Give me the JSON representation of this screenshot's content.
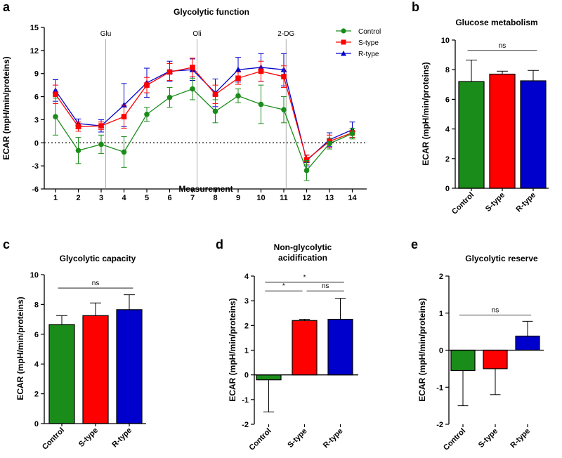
{
  "colors": {
    "control": "#1a8c1a",
    "s_type": "#ff0000",
    "r_type": "#0000cc",
    "axis": "#000000",
    "vline": "#999999"
  },
  "chart_data": [
    {
      "id": "a",
      "type": "line",
      "panel_label": "a",
      "title": "Glycolytic function",
      "xlabel": "Measurement",
      "ylabel": "ECAR (mpH/min/proteins)",
      "ylim": [
        -6,
        15
      ],
      "yticks": [
        -6,
        -3,
        0,
        3,
        6,
        9,
        12,
        15
      ],
      "x": [
        1,
        2,
        3,
        4,
        5,
        6,
        7,
        8,
        9,
        10,
        11,
        12,
        13,
        14
      ],
      "series": [
        {
          "name": "Control",
          "key": "control",
          "marker": "circle",
          "values": [
            3.4,
            -1.0,
            -0.2,
            -1.2,
            3.7,
            5.9,
            7.0,
            4.1,
            6.1,
            5.0,
            4.3,
            -3.6,
            -0.1,
            1.2
          ],
          "errors": [
            2.4,
            1.7,
            1.2,
            2.0,
            0.9,
            1.3,
            1.4,
            1.5,
            0.9,
            2.5,
            1.7,
            1.3,
            0.7,
            0.7
          ]
        },
        {
          "name": "S-type",
          "key": "s_type",
          "marker": "square",
          "values": [
            6.3,
            2.1,
            2.2,
            3.4,
            7.5,
            9.2,
            9.8,
            6.3,
            8.4,
            9.3,
            8.6,
            -2.2,
            0.2,
            1.3
          ],
          "errors": [
            1.2,
            0.6,
            0.5,
            1.5,
            1.0,
            1.1,
            1.2,
            1.2,
            0.8,
            1.3,
            1.4,
            0.6,
            0.8,
            0.6
          ]
        },
        {
          "name": "R-type",
          "key": "r_type",
          "marker": "triangle",
          "values": [
            6.8,
            2.5,
            2.2,
            4.9,
            7.8,
            9.3,
            9.5,
            6.5,
            9.5,
            9.8,
            9.5,
            -2.3,
            0.4,
            1.7
          ],
          "errors": [
            1.4,
            0.6,
            0.8,
            2.8,
            1.9,
            1.3,
            1.4,
            1.8,
            1.6,
            1.8,
            2.1,
            0.7,
            0.9,
            1.0
          ]
        }
      ],
      "vlines": [
        {
          "x": 3.2,
          "label": "Glu"
        },
        {
          "x": 7.2,
          "label": "Oli"
        },
        {
          "x": 11.1,
          "label": "2-DG"
        }
      ],
      "legend": "top-right"
    },
    {
      "id": "b",
      "type": "bar",
      "panel_label": "b",
      "title": "Glucose metabolism",
      "ylabel": "ECAR (mpH/min/proteins)",
      "ylim": [
        0,
        10
      ],
      "yticks": [
        0,
        2,
        4,
        6,
        8,
        10
      ],
      "categories": [
        "Control",
        "S-type",
        "R-type"
      ],
      "values": [
        7.2,
        7.7,
        7.25
      ],
      "errors": [
        1.45,
        0.2,
        0.7
      ],
      "significance": [
        {
          "from": 0,
          "to": 2,
          "y": 9.3,
          "label": "ns"
        }
      ]
    },
    {
      "id": "c",
      "type": "bar",
      "panel_label": "c",
      "title": "Glycolytic capacity",
      "ylabel": "ECAR (mpH/min/proteins)",
      "ylim": [
        0,
        10
      ],
      "yticks": [
        0,
        2,
        4,
        6,
        8,
        10
      ],
      "categories": [
        "Control",
        "S-type",
        "R-type"
      ],
      "values": [
        6.65,
        7.25,
        7.65
      ],
      "errors": [
        0.6,
        0.85,
        1.0
      ],
      "significance": [
        {
          "from": 0,
          "to": 2,
          "y": 9.1,
          "label": "ns"
        }
      ]
    },
    {
      "id": "d",
      "type": "bar",
      "panel_label": "d",
      "title": "Non-glycolytic acidification",
      "title_lines": [
        "Non-glycolytic",
        "acidification"
      ],
      "ylabel": "ECAR (mpH/min/proteins)",
      "ylim": [
        -2,
        4
      ],
      "yticks": [
        -2,
        -1,
        0,
        1,
        2,
        3,
        4
      ],
      "categories": [
        "Control",
        "S-type",
        "R-type"
      ],
      "values": [
        -0.2,
        2.2,
        2.25
      ],
      "errors": [
        1.3,
        0.05,
        0.85
      ],
      "significance": [
        {
          "from": 0,
          "to": 2,
          "y": 3.75,
          "label": "*"
        },
        {
          "from": 0,
          "to": 1,
          "y": 3.4,
          "label": "*"
        },
        {
          "from": 1,
          "to": 2,
          "y": 3.4,
          "label": "ns"
        }
      ]
    },
    {
      "id": "e",
      "type": "bar",
      "panel_label": "e",
      "title": "Glycolytic reserve",
      "ylabel": "ECAR (mpH/min/proteins)",
      "ylim": [
        -2,
        2
      ],
      "yticks": [
        -2,
        -1,
        0,
        1,
        2
      ],
      "categories": [
        "Control",
        "S-type",
        "R-type"
      ],
      "values": [
        -0.55,
        -0.5,
        0.38
      ],
      "errors": [
        0.95,
        0.7,
        0.4
      ],
      "significance": [
        {
          "from": 0,
          "to": 2,
          "y": 0.95,
          "label": "ns"
        }
      ]
    }
  ]
}
